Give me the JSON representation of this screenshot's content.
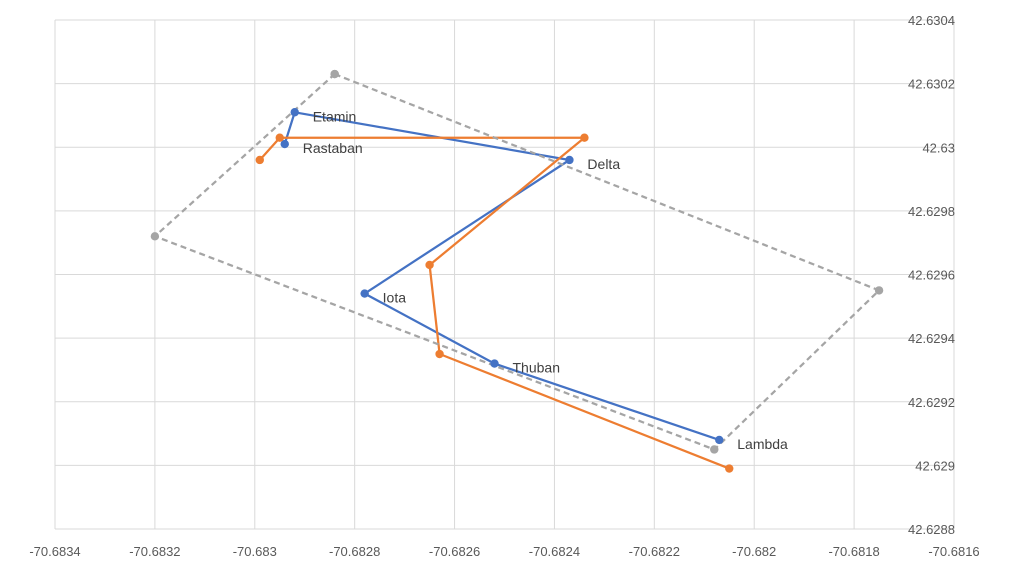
{
  "chart_data": {
    "type": "scatter",
    "title": "",
    "xlabel": "",
    "ylabel": "",
    "xlim": [
      -70.6834,
      -70.6816
    ],
    "ylim": [
      42.6288,
      42.6304
    ],
    "x_ticks": [
      -70.6834,
      -70.6832,
      -70.683,
      -70.6828,
      -70.6826,
      -70.6824,
      -70.6822,
      -70.682,
      -70.6818,
      -70.6816
    ],
    "x_tick_labels": [
      "-70.6834",
      "-70.6832",
      "-70.683",
      "-70.6828",
      "-70.6826",
      "-70.6824",
      "-70.6822",
      "-70.682",
      "-70.6818",
      "-70.6816"
    ],
    "y_ticks": [
      42.6288,
      42.629,
      42.6292,
      42.6294,
      42.6296,
      42.6298,
      42.63,
      42.6302,
      42.6304
    ],
    "y_tick_labels": [
      "42.6288",
      "42.629",
      "42.6292",
      "42.6294",
      "42.6296",
      "42.6298",
      "42.63",
      "42.6302",
      "42.6304"
    ],
    "grid": true,
    "legend": "none",
    "series": [
      {
        "color": "#4472c4",
        "style": "solid",
        "points": [
          {
            "x": -70.68294,
            "y": 42.63001
          },
          {
            "x": -70.68292,
            "y": 42.63011
          },
          {
            "x": -70.68237,
            "y": 42.62996
          },
          {
            "x": -70.68278,
            "y": 42.62954
          },
          {
            "x": -70.68252,
            "y": 42.62932
          },
          {
            "x": -70.68207,
            "y": 42.62908
          }
        ]
      },
      {
        "color": "#ed7d31",
        "style": "solid",
        "points": [
          {
            "x": -70.68299,
            "y": 42.62996
          },
          {
            "x": -70.68295,
            "y": 42.63003
          },
          {
            "x": -70.68234,
            "y": 42.63003
          },
          {
            "x": -70.68265,
            "y": 42.62963
          },
          {
            "x": -70.68263,
            "y": 42.62935
          },
          {
            "x": -70.68205,
            "y": 42.62899
          }
        ]
      },
      {
        "color": "#a5a5a5",
        "style": "dashed",
        "points": [
          {
            "x": -70.68284,
            "y": 42.63023
          },
          {
            "x": -70.68175,
            "y": 42.62955
          },
          {
            "x": -70.68208,
            "y": 42.62905
          },
          {
            "x": -70.6832,
            "y": 42.62972
          },
          {
            "x": -70.68284,
            "y": 42.63023
          }
        ]
      }
    ],
    "labels": [
      {
        "text": "Etamin",
        "x": -70.68292,
        "y": 42.63011
      },
      {
        "text": "Rastaban",
        "x": -70.68294,
        "y": 42.63001
      },
      {
        "text": "Delta",
        "x": -70.68237,
        "y": 42.62996
      },
      {
        "text": "Iota",
        "x": -70.68278,
        "y": 42.62954
      },
      {
        "text": "Thuban",
        "x": -70.68252,
        "y": 42.62932
      },
      {
        "text": "Lambda",
        "x": -70.68207,
        "y": 42.62908
      }
    ]
  }
}
